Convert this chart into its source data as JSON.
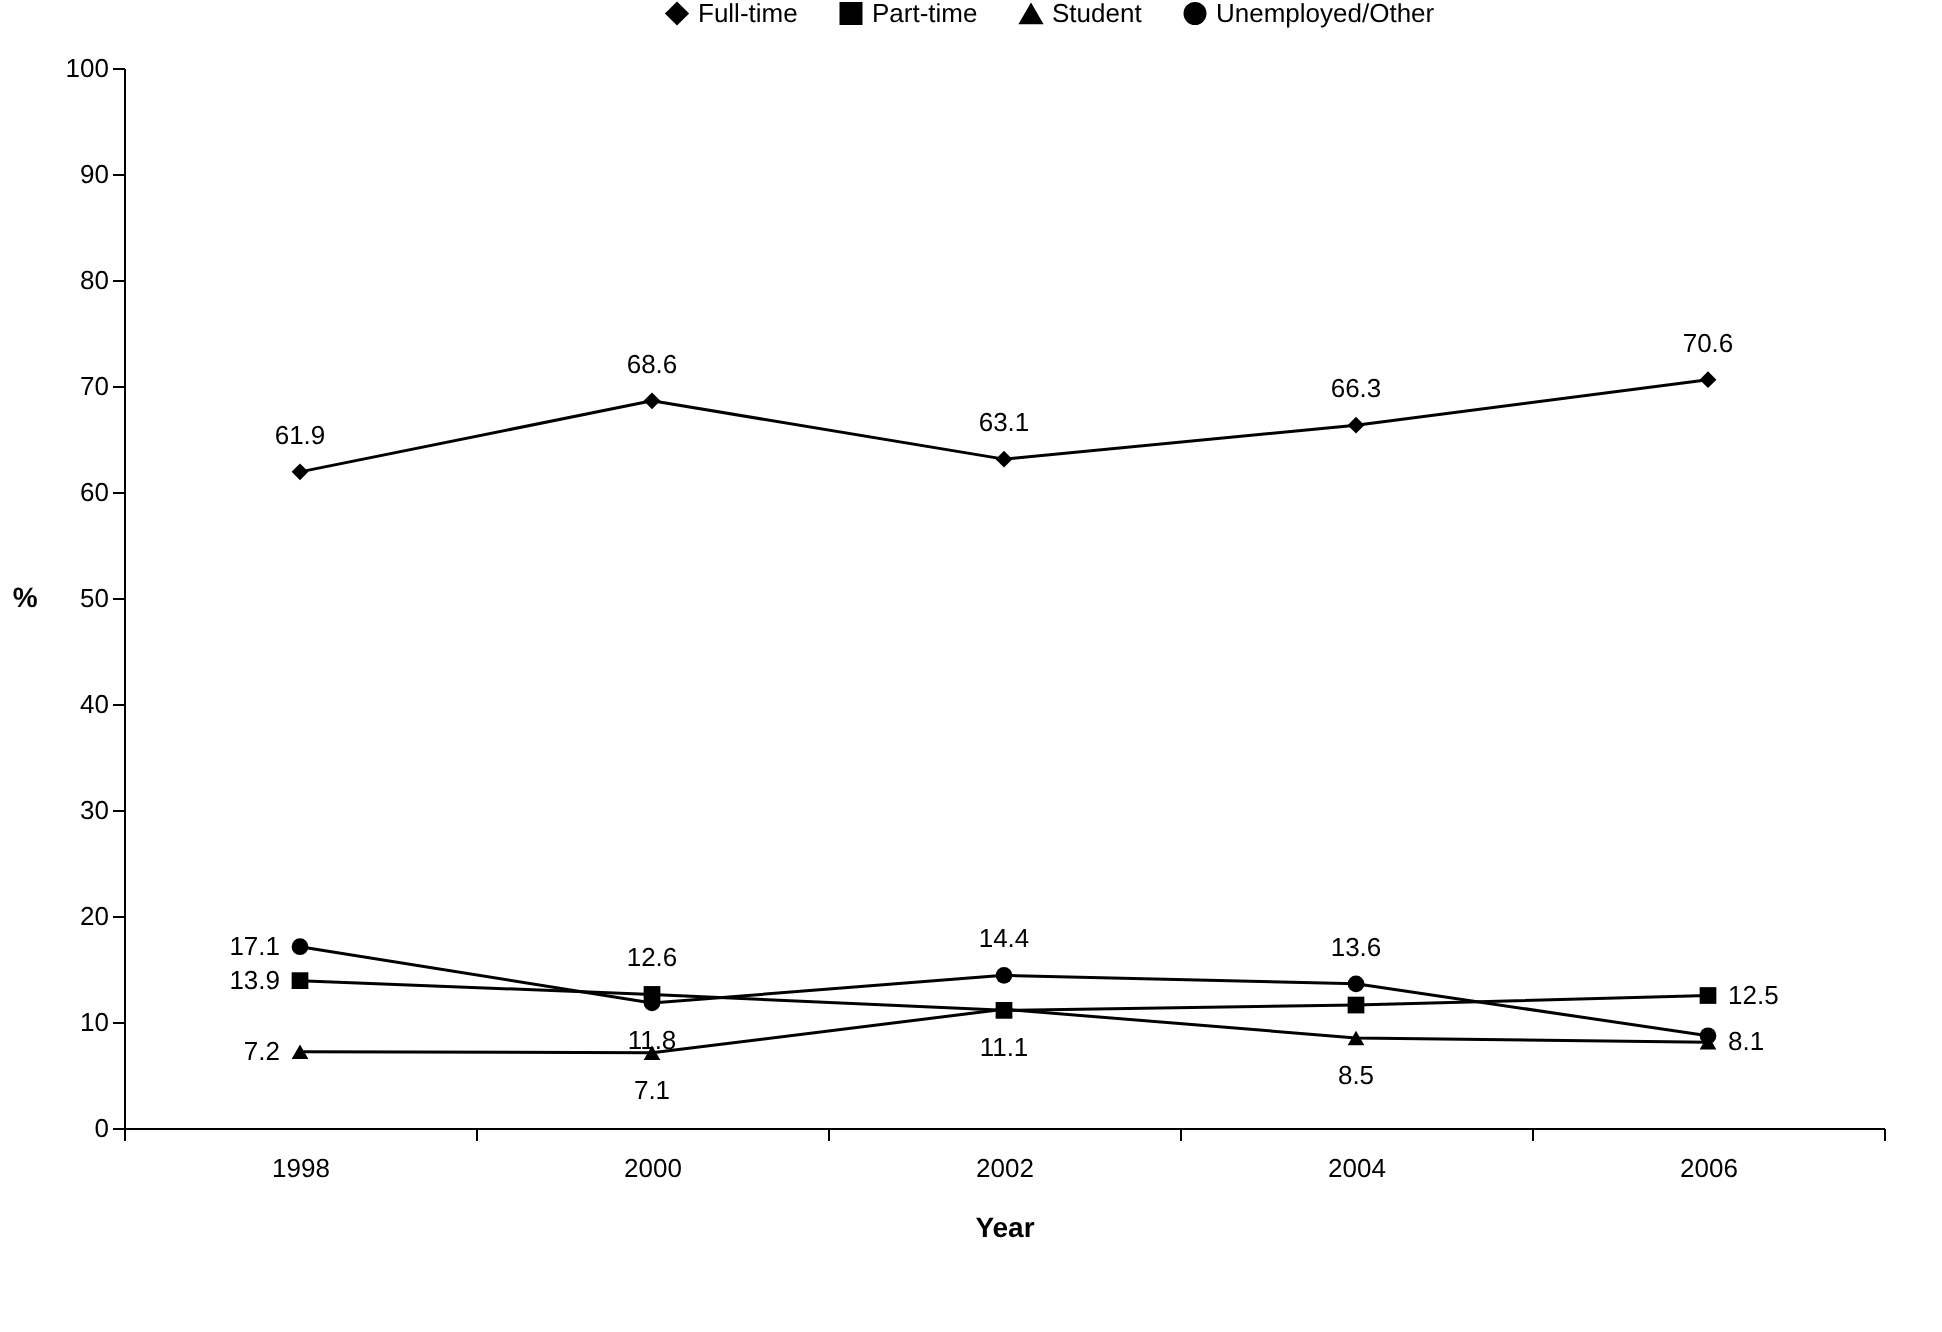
{
  "chart_data": {
    "type": "line",
    "xlabel": "Year",
    "ylabel": "%",
    "categories": [
      "1998",
      "2000",
      "2002",
      "2004",
      "2006"
    ],
    "ylim": [
      0,
      100
    ],
    "yticks": [
      0,
      10,
      20,
      30,
      40,
      50,
      60,
      70,
      80,
      90,
      100
    ],
    "grid": false,
    "legend": "top",
    "series": [
      {
        "name": "Full-time",
        "color": "#000000",
        "marker": "diamond",
        "values": [
          61.9,
          68.6,
          63.1,
          66.3,
          70.6
        ],
        "value_labels": [
          "61.9",
          "68.6",
          "63.1",
          "66.3",
          "70.6"
        ]
      },
      {
        "name": "Part-time",
        "color": "#000000",
        "marker": "square",
        "values": [
          13.9,
          12.6,
          11.1,
          11.6,
          12.5
        ],
        "value_labels": [
          "13.9",
          "12.6",
          "11.1",
          null,
          "12.5"
        ]
      },
      {
        "name": "Student",
        "color": "#000000",
        "marker": "triangle",
        "values": [
          7.2,
          7.1,
          11.2,
          8.5,
          8.1
        ],
        "value_labels": [
          "7.2",
          "7.1",
          null,
          "8.5",
          "8.1"
        ]
      },
      {
        "name": "Unemployed/Other",
        "color": "#000000",
        "marker": "circle",
        "values": [
          17.1,
          11.8,
          14.4,
          13.6,
          8.7
        ],
        "value_labels": [
          "17.1",
          "11.8",
          "14.4",
          "13.6",
          null
        ]
      }
    ]
  }
}
